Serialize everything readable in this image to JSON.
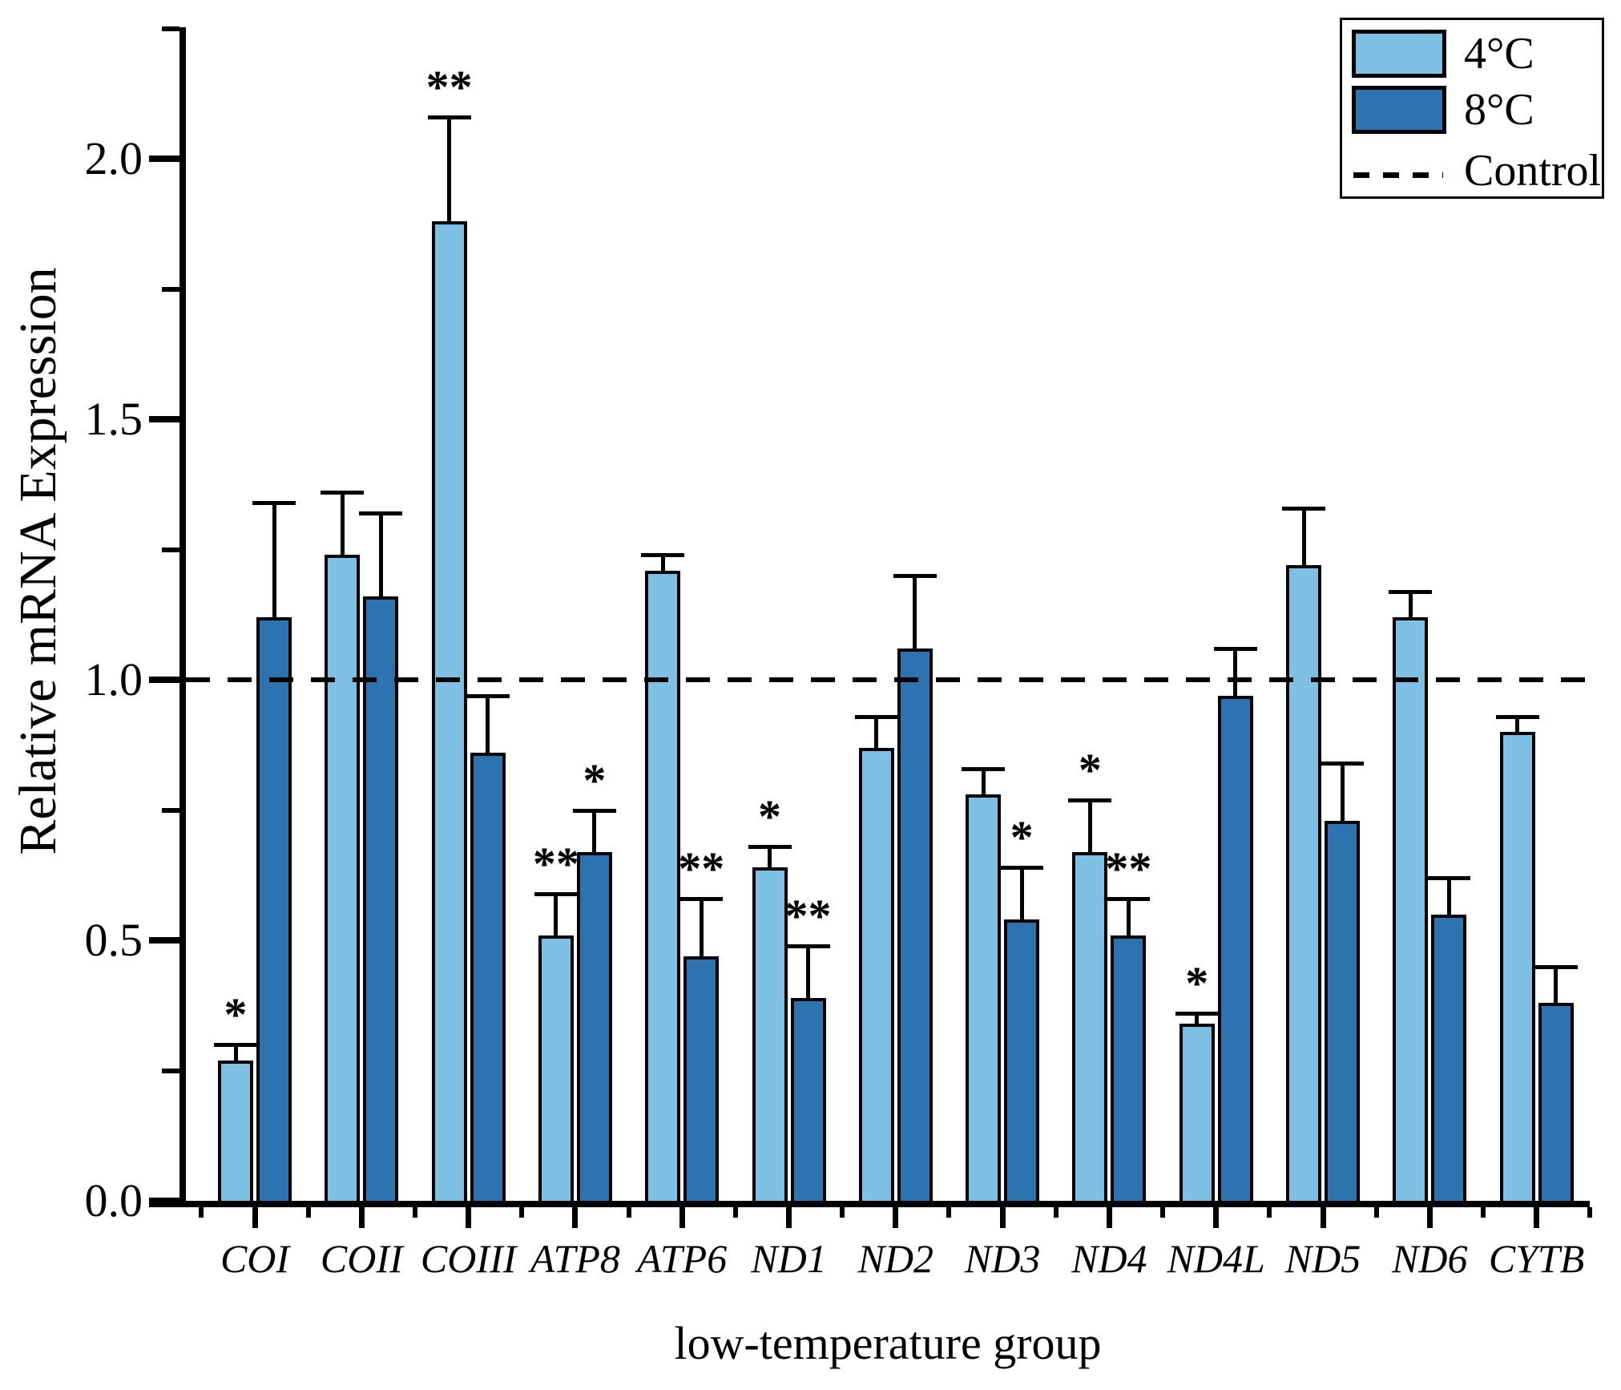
{
  "figure_title": "",
  "y_axis": {
    "title": "Relative mRNA Expression",
    "tick_labels": [
      "0.0",
      "0.5",
      "1.0",
      "1.5",
      "2.0"
    ]
  },
  "x_axis": {
    "title": "low-temperature group"
  },
  "legend": {
    "item1_label": "4°C",
    "item2_label": "8°C",
    "item3_label": "Control"
  },
  "chart_data": {
    "type": "bar",
    "title": "",
    "xlabel": "low-temperature group",
    "ylabel": "Relative mRNA Expression",
    "categories": [
      "COI",
      "COII",
      "COIII",
      "ATP8",
      "ATP6",
      "ND1",
      "ND2",
      "ND3",
      "ND4",
      "ND4L",
      "ND5",
      "ND6",
      "CYTB"
    ],
    "series": [
      {
        "name": "4°C",
        "color": "#7EC0E4",
        "values": [
          0.27,
          1.24,
          1.88,
          0.51,
          1.21,
          0.64,
          0.87,
          0.78,
          0.67,
          0.34,
          1.22,
          1.12,
          0.9
        ],
        "errors": [
          0.03,
          0.12,
          0.2,
          0.08,
          0.03,
          0.04,
          0.06,
          0.05,
          0.1,
          0.02,
          0.11,
          0.05,
          0.03
        ],
        "significance": [
          "*",
          "",
          "**",
          "**",
          "",
          "*",
          "",
          "",
          "*",
          "*",
          "",
          "",
          ""
        ]
      },
      {
        "name": "8°C",
        "color": "#2D73B0",
        "values": [
          1.12,
          1.16,
          0.86,
          0.67,
          0.47,
          0.39,
          1.06,
          0.54,
          0.51,
          0.97,
          0.73,
          0.55,
          0.38
        ],
        "errors": [
          0.22,
          0.16,
          0.11,
          0.08,
          0.11,
          0.1,
          0.14,
          0.1,
          0.07,
          0.09,
          0.11,
          0.07,
          0.07
        ],
        "significance": [
          "",
          "",
          "",
          "*",
          "**",
          "**",
          "",
          "*",
          "**",
          "",
          "",
          "",
          ""
        ]
      }
    ],
    "control_line": {
      "label": "Control",
      "value": 1.0,
      "style": "dashed"
    },
    "error_bars": "upper-only",
    "bar_outline_color": "#000000",
    "ylim": [
      0.0,
      2.25
    ],
    "y_major_ticks": [
      0.0,
      0.5,
      1.0,
      1.5,
      2.0
    ],
    "y_minor_ticks": [
      0.25,
      0.75,
      1.25,
      1.75,
      2.25
    ],
    "grid": false,
    "legend_position": "top-right"
  }
}
